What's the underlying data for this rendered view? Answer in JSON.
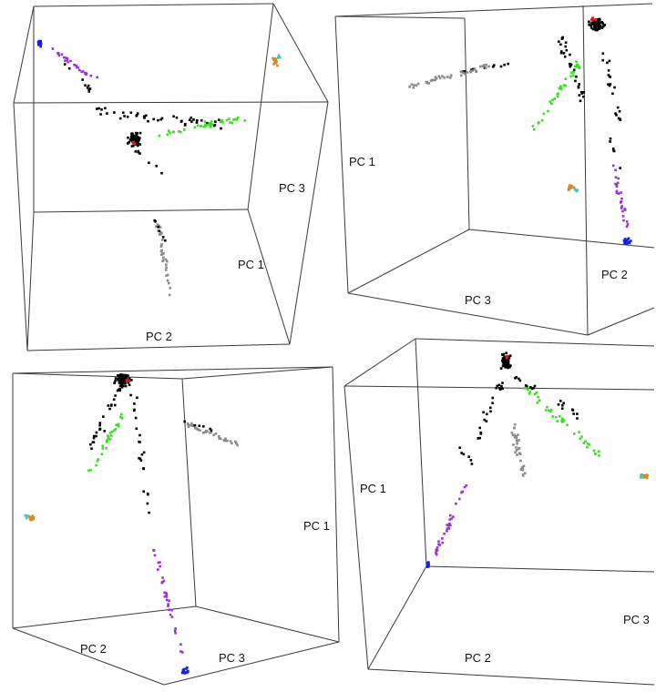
{
  "chart_data": [
    {
      "type": "scatter",
      "projection": "3D PCA",
      "axis_labels": {
        "pc1": "PC 1",
        "pc2": "PC 2",
        "pc3": "PC 3"
      },
      "colors": {
        "black": "#000000",
        "red": "#e0141e",
        "green": "#39e01e",
        "gray": "#8a8a8a",
        "purple": "#9b30d9",
        "blue": "#1420e6",
        "orange": "#d98a1e",
        "teal": "#46c8b4"
      }
    },
    {
      "type": "scatter",
      "projection": "3D PCA",
      "axis_labels": {
        "pc1": "PC 1",
        "pc2": "PC 2",
        "pc3": "PC 3"
      }
    },
    {
      "type": "scatter",
      "projection": "3D PCA",
      "axis_labels": {
        "pc1": "PC 1",
        "pc2": "PC 2",
        "pc3": "PC 3"
      }
    },
    {
      "type": "scatter",
      "projection": "3D PCA",
      "axis_labels": {
        "pc1": "PC 1",
        "pc2": "PC 2",
        "pc3": "PC 3"
      }
    }
  ]
}
